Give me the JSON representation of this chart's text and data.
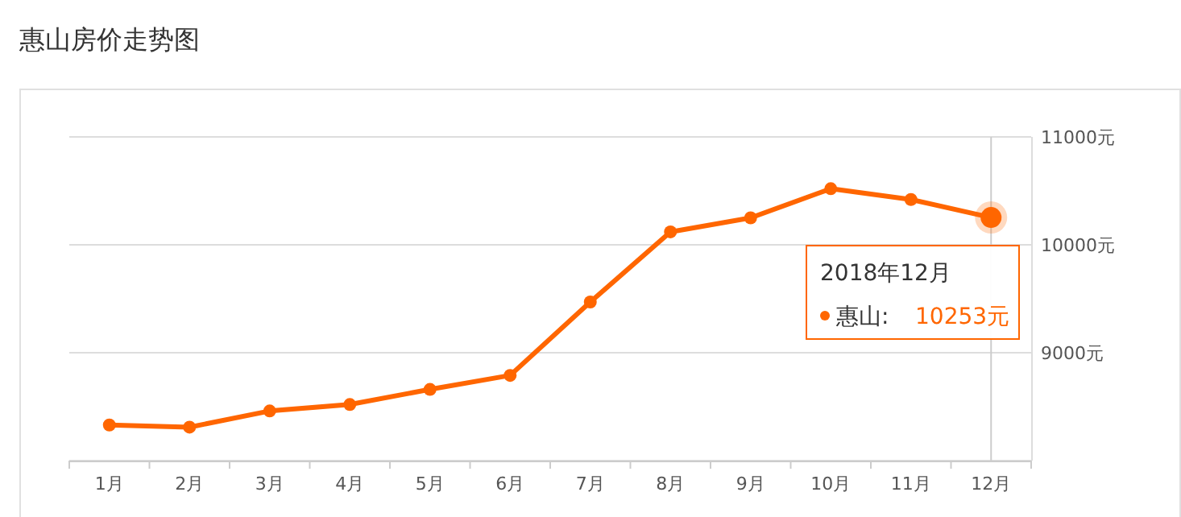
{
  "chart_data": {
    "type": "line",
    "title": "惠山房价走势图",
    "categories": [
      "1月",
      "2月",
      "3月",
      "4月",
      "5月",
      "6月",
      "7月",
      "8月",
      "9月",
      "10月",
      "11月",
      "12月"
    ],
    "series": [
      {
        "color": "#ff6600",
        "values": [
          8330,
          8310,
          8460,
          8520,
          8660,
          8790,
          9470,
          10120,
          10250,
          10520,
          10420,
          10253
        ]
      }
    ],
    "ylim": [
      8000,
      11000
    ],
    "yticks": [
      {
        "value": 8000,
        "label": null
      },
      {
        "value": 9000,
        "label": "9000元"
      },
      {
        "value": 10000,
        "label": "10000元"
      },
      {
        "value": 11000,
        "label": "11000元"
      }
    ],
    "grid": "y",
    "marker": "circle",
    "line_style": "solid",
    "legend": false,
    "ref_lines": [
      {
        "axis": "x",
        "value": "12月",
        "color": "#cccccc"
      }
    ],
    "annotations": [
      "2018年12月",
      "惠山:",
      "10253元"
    ]
  }
}
